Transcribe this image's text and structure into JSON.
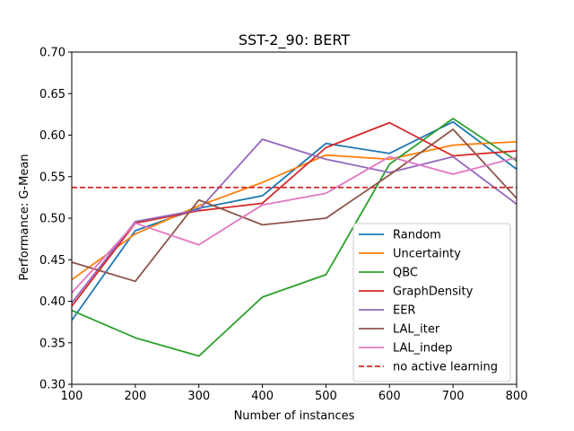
{
  "chart_data": {
    "type": "line",
    "title": "SST-2_90: BERT",
    "xlabel": "Number of instances",
    "ylabel": "Performance: G-Mean",
    "xlim": [
      100,
      800
    ],
    "ylim": [
      0.3,
      0.7
    ],
    "x": [
      100,
      200,
      300,
      400,
      500,
      600,
      700,
      800
    ],
    "xticks": [
      "100",
      "200",
      "300",
      "400",
      "500",
      "600",
      "700",
      "800"
    ],
    "yticks": [
      "0.30",
      "0.35",
      "0.40",
      "0.45",
      "0.50",
      "0.55",
      "0.60",
      "0.65",
      "0.70"
    ],
    "grid": false,
    "legend_position": "lower-right",
    "series": [
      {
        "name": "Random",
        "color": "#1f77b4",
        "style": "solid",
        "values": [
          0.377,
          0.485,
          0.512,
          0.527,
          0.59,
          0.578,
          0.616,
          0.559
        ]
      },
      {
        "name": "Uncertainty",
        "color": "#ff7f0e",
        "style": "solid",
        "values": [
          0.426,
          0.481,
          0.515,
          0.543,
          0.576,
          0.571,
          0.588,
          0.592
        ]
      },
      {
        "name": "QBC",
        "color": "#2ca02c",
        "style": "solid",
        "values": [
          0.389,
          0.356,
          0.334,
          0.405,
          0.432,
          0.565,
          0.62,
          0.569
        ]
      },
      {
        "name": "GraphDensity",
        "color": "#d62728",
        "style": "solid",
        "values": [
          0.394,
          0.494,
          0.509,
          0.518,
          0.585,
          0.615,
          0.575,
          0.581
        ]
      },
      {
        "name": "EER",
        "color": "#9467bd",
        "style": "solid",
        "values": [
          0.398,
          0.496,
          0.51,
          0.595,
          0.571,
          0.555,
          0.574,
          0.517
        ]
      },
      {
        "name": "LAL_iter",
        "color": "#8c564b",
        "style": "solid",
        "values": [
          0.447,
          0.424,
          0.522,
          0.492,
          0.5,
          0.552,
          0.607,
          0.524
        ]
      },
      {
        "name": "LAL_indep",
        "color": "#e377c2",
        "style": "solid",
        "values": [
          0.41,
          0.494,
          0.468,
          0.516,
          0.53,
          0.574,
          0.553,
          0.573
        ]
      },
      {
        "name": "no active learning",
        "color": "#d62728",
        "style": "dashed",
        "values": [
          0.537,
          0.537,
          0.537,
          0.537,
          0.537,
          0.537,
          0.537,
          0.537
        ]
      }
    ]
  }
}
